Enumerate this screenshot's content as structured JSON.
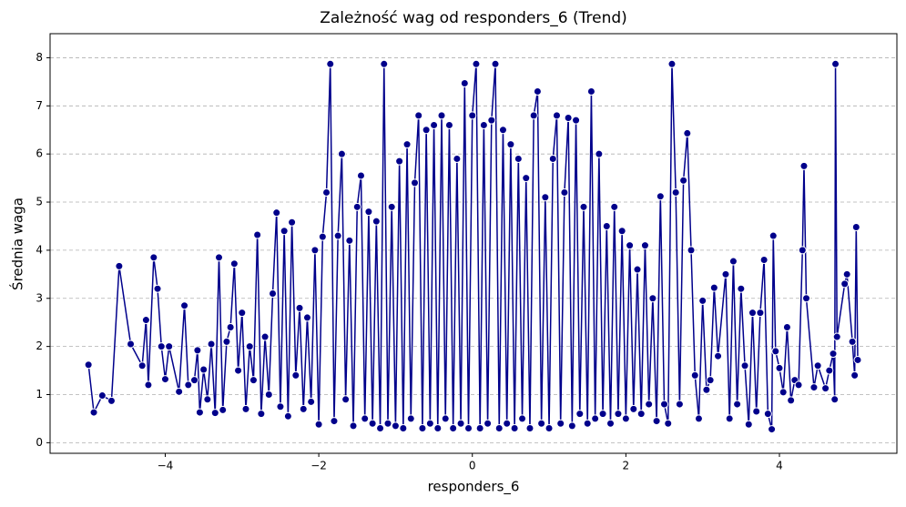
{
  "chart_data": {
    "type": "line",
    "title": "Zależność wag od responders_6 (Trend)",
    "x_label": "responders_6",
    "y_label": "Średnia waga",
    "xlim": [
      -5.5,
      5.53
    ],
    "ylim": [
      -0.22,
      8.5
    ],
    "xticks": [
      {
        "value": -4,
        "label": "−4"
      },
      {
        "value": -2,
        "label": "−2"
      },
      0,
      2,
      4
    ],
    "yticks": [
      0,
      1,
      2,
      3,
      4,
      5,
      6,
      7,
      8
    ],
    "grid": "y",
    "series": [
      {
        "name": "responders_6",
        "color": "#00008b",
        "x": [
          -5.0,
          -4.93,
          -4.82,
          -4.7,
          -4.6,
          -4.45,
          -4.3,
          -4.25,
          -4.22,
          -4.15,
          -4.1,
          -4.05,
          -4.0,
          -3.95,
          -3.82,
          -3.75,
          -3.7,
          -3.62,
          -3.58,
          -3.55,
          -3.5,
          -3.45,
          -3.4,
          -3.35,
          -3.3,
          -3.25,
          -3.2,
          -3.15,
          -3.1,
          -3.05,
          -3.0,
          -2.95,
          -2.9,
          -2.85,
          -2.8,
          -2.75,
          -2.7,
          -2.65,
          -2.6,
          -2.55,
          -2.5,
          -2.45,
          -2.4,
          -2.35,
          -2.3,
          -2.25,
          -2.2,
          -2.15,
          -2.1,
          -2.05,
          -2.0,
          -1.95,
          -1.9,
          -1.85,
          -1.8,
          -1.75,
          -1.7,
          -1.65,
          -1.6,
          -1.55,
          -1.5,
          -1.45,
          -1.4,
          -1.35,
          -1.3,
          -1.25,
          -1.2,
          -1.15,
          -1.1,
          -1.05,
          -1.0,
          -0.95,
          -0.9,
          -0.85,
          -0.8,
          -0.75,
          -0.7,
          -0.65,
          -0.6,
          -0.55,
          -0.5,
          -0.45,
          -0.4,
          -0.35,
          -0.3,
          -0.25,
          -0.2,
          -0.15,
          -0.1,
          -0.05,
          0.0,
          0.05,
          0.1,
          0.15,
          0.2,
          0.25,
          0.3,
          0.35,
          0.4,
          0.45,
          0.5,
          0.55,
          0.6,
          0.65,
          0.7,
          0.75,
          0.8,
          0.85,
          0.9,
          0.95,
          1.0,
          1.05,
          1.1,
          1.15,
          1.2,
          1.25,
          1.3,
          1.35,
          1.4,
          1.45,
          1.5,
          1.55,
          1.6,
          1.65,
          1.7,
          1.75,
          1.8,
          1.85,
          1.9,
          1.95,
          2.0,
          2.05,
          2.1,
          2.15,
          2.2,
          2.25,
          2.3,
          2.35,
          2.4,
          2.45,
          2.5,
          2.55,
          2.6,
          2.65,
          2.7,
          2.75,
          2.8,
          2.85,
          2.9,
          2.95,
          3.0,
          3.05,
          3.1,
          3.15,
          3.2,
          3.3,
          3.35,
          3.4,
          3.45,
          3.5,
          3.55,
          3.6,
          3.65,
          3.7,
          3.75,
          3.8,
          3.85,
          3.9,
          3.92,
          3.95,
          4.0,
          4.05,
          4.1,
          4.15,
          4.2,
          4.25,
          4.3,
          4.32,
          4.35,
          4.45,
          4.5,
          4.6,
          4.65,
          4.7,
          4.72,
          4.73,
          4.75,
          4.85,
          4.88,
          4.95,
          4.98,
          5.0,
          5.02
        ],
        "values": [
          1.62,
          0.63,
          0.98,
          0.87,
          3.67,
          2.05,
          1.6,
          2.55,
          1.2,
          3.85,
          3.2,
          2.0,
          1.32,
          2.0,
          1.06,
          2.85,
          1.2,
          1.3,
          1.92,
          0.63,
          1.52,
          0.9,
          2.05,
          0.62,
          3.85,
          0.68,
          2.1,
          2.4,
          3.72,
          1.5,
          2.7,
          0.7,
          2.0,
          1.3,
          4.32,
          0.6,
          2.2,
          1.0,
          3.1,
          4.78,
          0.75,
          4.4,
          0.55,
          4.58,
          1.4,
          2.8,
          0.7,
          2.6,
          0.85,
          4.0,
          0.38,
          4.28,
          5.2,
          7.87,
          0.45,
          4.3,
          6.0,
          0.9,
          4.2,
          0.35,
          4.9,
          5.55,
          0.5,
          4.8,
          0.4,
          4.6,
          0.3,
          7.87,
          0.4,
          4.9,
          0.35,
          5.85,
          0.3,
          6.2,
          0.5,
          5.4,
          6.8,
          0.3,
          6.5,
          0.4,
          6.6,
          0.3,
          6.8,
          0.5,
          6.6,
          0.3,
          5.9,
          0.4,
          7.47,
          0.3,
          6.8,
          7.87,
          0.3,
          6.6,
          0.4,
          6.7,
          7.87,
          0.3,
          6.5,
          0.4,
          6.2,
          0.3,
          5.9,
          0.5,
          5.5,
          0.3,
          6.8,
          7.3,
          0.4,
          5.1,
          0.3,
          5.9,
          6.8,
          0.4,
          5.2,
          6.75,
          0.35,
          6.7,
          0.6,
          4.9,
          0.4,
          7.3,
          0.5,
          6.0,
          0.6,
          4.5,
          0.4,
          4.9,
          0.6,
          4.4,
          0.5,
          4.1,
          0.7,
          3.6,
          0.6,
          4.1,
          0.8,
          3.0,
          0.45,
          5.12,
          0.8,
          0.4,
          7.87,
          5.2,
          0.8,
          5.45,
          6.43,
          4.0,
          1.4,
          0.5,
          2.95,
          1.1,
          1.3,
          3.22,
          1.8,
          3.5,
          0.5,
          3.77,
          0.8,
          3.2,
          1.6,
          0.38,
          2.7,
          0.65,
          2.7,
          3.8,
          0.6,
          0.28,
          4.3,
          1.9,
          1.55,
          1.05,
          2.4,
          0.88,
          1.3,
          1.2,
          4.0,
          5.75,
          3.0,
          1.15,
          1.6,
          1.13,
          1.5,
          1.85,
          0.9,
          7.87,
          2.2,
          3.3,
          3.5,
          2.1,
          1.4,
          4.48,
          1.72
        ]
      }
    ]
  }
}
